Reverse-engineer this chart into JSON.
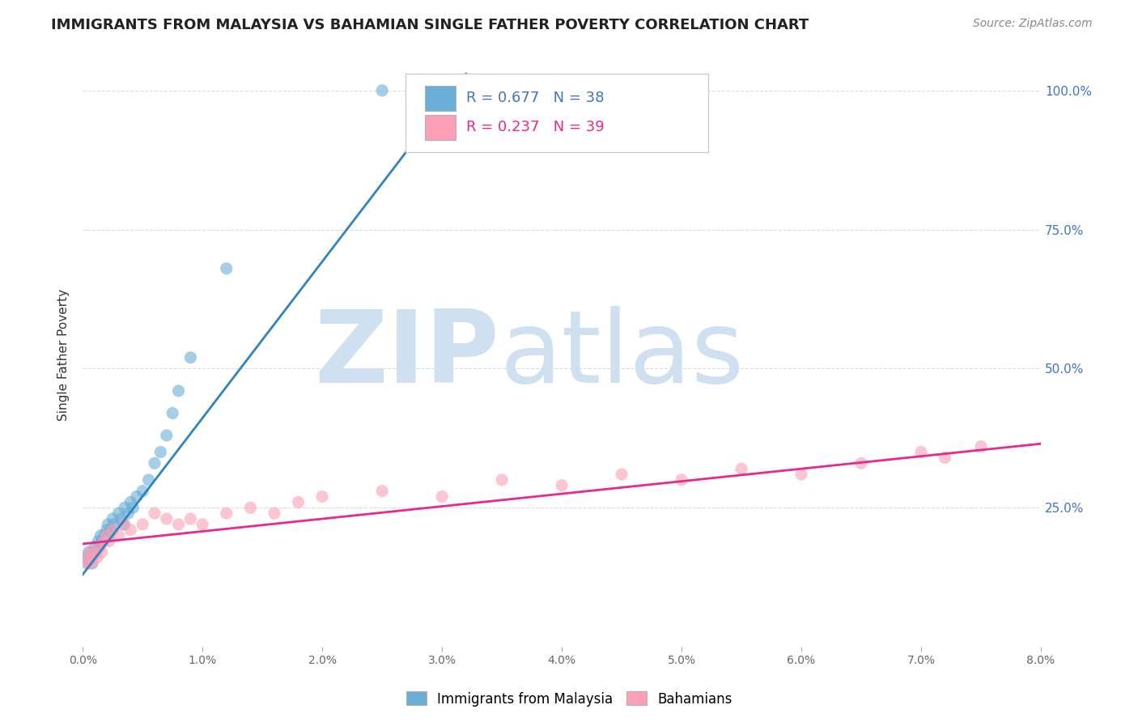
{
  "title": "IMMIGRANTS FROM MALAYSIA VS BAHAMIAN SINGLE FATHER POVERTY CORRELATION CHART",
  "source": "Source: ZipAtlas.com",
  "ylabel": "Single Father Poverty",
  "legend_entries": [
    "Immigrants from Malaysia",
    "Bahamians"
  ],
  "legend_r1": "R = 0.677",
  "legend_n1": "N = 38",
  "legend_r2": "R = 0.237",
  "legend_n2": "N = 39",
  "color_blue": "#6baed6",
  "color_pink": "#fa9fb5",
  "trendline_blue": "#3182bd",
  "trendline_pink": "#e7298a",
  "watermark_zip": "ZIP",
  "watermark_atlas": "atlas",
  "watermark_color": "#cfe0f0",
  "background": "#ffffff",
  "grid_color": "#dddddd",
  "blue_scatter_x": [
    0.0003,
    0.0004,
    0.0005,
    0.0006,
    0.0007,
    0.0008,
    0.0009,
    0.001,
    0.0011,
    0.0013,
    0.0014,
    0.0015,
    0.0016,
    0.0018,
    0.002,
    0.0021,
    0.0022,
    0.0023,
    0.0025,
    0.0026,
    0.003,
    0.0032,
    0.0034,
    0.0035,
    0.0038,
    0.004,
    0.0042,
    0.0045,
    0.005,
    0.0055,
    0.006,
    0.0065,
    0.007,
    0.0075,
    0.008,
    0.009,
    0.012,
    0.025
  ],
  "blue_scatter_y": [
    0.16,
    0.15,
    0.17,
    0.16,
    0.16,
    0.15,
    0.17,
    0.18,
    0.17,
    0.19,
    0.18,
    0.2,
    0.19,
    0.2,
    0.21,
    0.22,
    0.2,
    0.21,
    0.23,
    0.22,
    0.24,
    0.23,
    0.22,
    0.25,
    0.24,
    0.26,
    0.25,
    0.27,
    0.28,
    0.3,
    0.33,
    0.35,
    0.38,
    0.42,
    0.46,
    0.52,
    0.68,
    1.0
  ],
  "pink_scatter_x": [
    0.0002,
    0.0004,
    0.0006,
    0.0007,
    0.0008,
    0.001,
    0.0012,
    0.0014,
    0.0016,
    0.0018,
    0.002,
    0.0022,
    0.0025,
    0.003,
    0.0035,
    0.004,
    0.005,
    0.006,
    0.007,
    0.008,
    0.009,
    0.01,
    0.012,
    0.014,
    0.016,
    0.018,
    0.02,
    0.025,
    0.03,
    0.035,
    0.04,
    0.045,
    0.05,
    0.055,
    0.06,
    0.065,
    0.07,
    0.072,
    0.075
  ],
  "pink_scatter_y": [
    0.16,
    0.15,
    0.17,
    0.15,
    0.16,
    0.17,
    0.16,
    0.18,
    0.17,
    0.19,
    0.2,
    0.19,
    0.21,
    0.2,
    0.22,
    0.21,
    0.22,
    0.24,
    0.23,
    0.22,
    0.23,
    0.22,
    0.24,
    0.25,
    0.24,
    0.26,
    0.27,
    0.28,
    0.27,
    0.3,
    0.29,
    0.31,
    0.3,
    0.32,
    0.31,
    0.33,
    0.35,
    0.34,
    0.36
  ],
  "xmin": 0.0,
  "xmax": 0.08,
  "ymin": 0.0,
  "ymax": 1.05,
  "blue_trend_x0": 0.0,
  "blue_trend_y0": 0.13,
  "blue_trend_x1": 0.032,
  "blue_trend_y1": 1.03,
  "pink_trend_x0": 0.0,
  "pink_trend_y0": 0.185,
  "pink_trend_x1": 0.08,
  "pink_trend_y1": 0.365
}
